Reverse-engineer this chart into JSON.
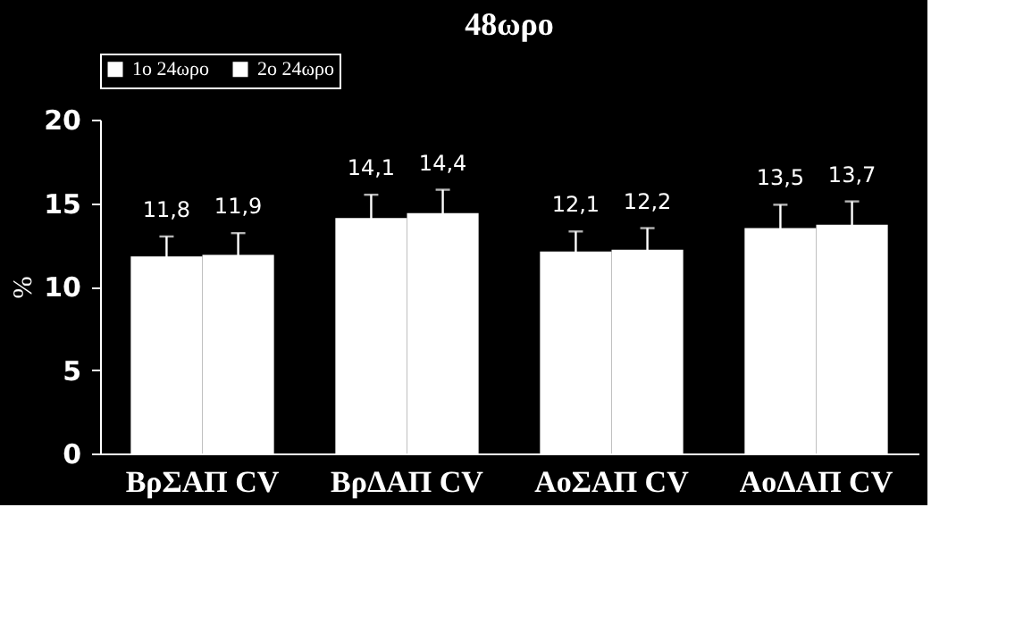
{
  "chart_data": {
    "type": "bar",
    "title": "48ωρο",
    "ylabel": "%",
    "categories": [
      "ΒρΣΑΠ CV",
      "ΒρΔΑΠ CV",
      "ΑοΣΑΠ CV",
      "ΑοΔΑΠ CV"
    ],
    "series": [
      {
        "name": "1ο 24ωρο",
        "color": "#ffffff",
        "values": [
          11.8,
          14.1,
          12.1,
          13.5
        ],
        "errors": [
          1.2,
          1.4,
          1.2,
          1.4
        ],
        "value_labels": [
          "11,8",
          "14,1",
          "12,1",
          "13,5"
        ]
      },
      {
        "name": "2ο 24ωρο",
        "color": "#ffffff",
        "values": [
          11.9,
          14.4,
          12.2,
          13.7
        ],
        "errors": [
          1.3,
          1.4,
          1.3,
          1.4
        ],
        "value_labels": [
          "11,9",
          "14,4",
          "12,2",
          "13,7"
        ]
      }
    ],
    "ylim": [
      0,
      20
    ],
    "yticks": [
      0,
      5,
      10,
      15,
      20
    ],
    "grid": false,
    "legend": "top"
  }
}
